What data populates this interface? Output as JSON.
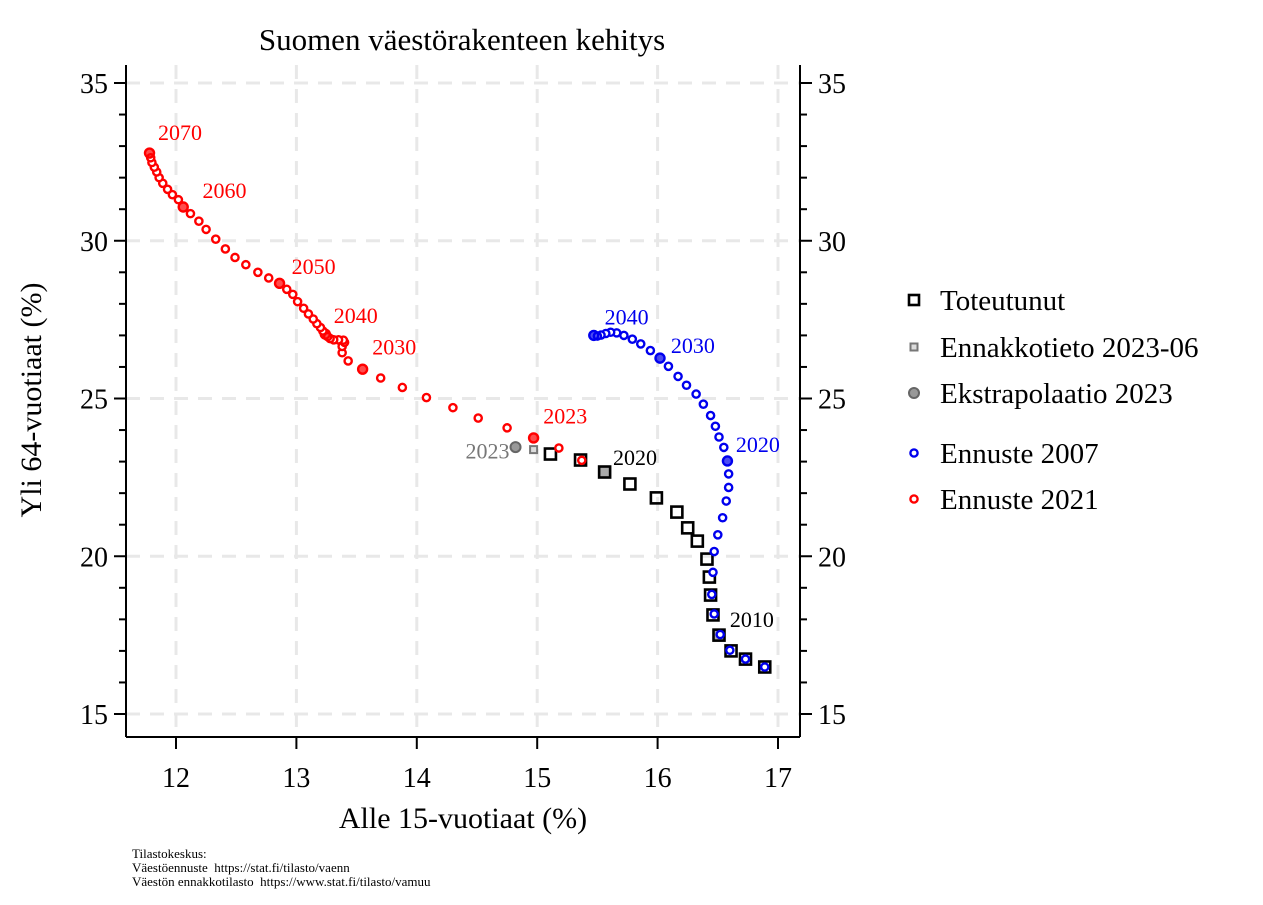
{
  "chart_data": {
    "type": "scatter",
    "title": "Suomen väestörakenteen kehitys",
    "xlabel": "Alle 15-vuotiaat (%)",
    "ylabel": "Yli 64-vuotiaat (%)",
    "xlim": [
      11.6,
      17.2
    ],
    "ylim": [
      14.4,
      36.0
    ],
    "x_ticks": [
      12,
      13,
      14,
      15,
      16,
      17
    ],
    "y_ticks": [
      15,
      20,
      25,
      30,
      35
    ],
    "x_tick_labels": [
      "12",
      "13",
      "14",
      "15",
      "16",
      "17"
    ],
    "y_tick_labels": [
      "15",
      "20",
      "25",
      "30",
      "35"
    ],
    "y_tick_labels_right": [
      "15",
      "20",
      "25",
      "30",
      "35"
    ],
    "grid": true,
    "legend_position": "right",
    "legend": [
      {
        "label": "Toteutunut",
        "marker": "square",
        "color": "#000000"
      },
      {
        "label": "Ennakkotieto 2023-06",
        "marker": "small-square",
        "color": "#777777"
      },
      {
        "label": "Ekstrapolaatio 2023",
        "marker": "filled-circle",
        "color": "#777777"
      },
      {
        "label": "Ennuste 2007",
        "marker": "circle",
        "color": "#0000ee"
      },
      {
        "label": "Ennuste 2021",
        "marker": "circle",
        "color": "#ff0000"
      }
    ],
    "series": [
      {
        "name": "Toteutunut",
        "color": "#000000",
        "points": [
          {
            "year": 2007,
            "x": 16.89,
            "y": 16.49
          },
          {
            "year": 2008,
            "x": 16.73,
            "y": 16.74
          },
          {
            "year": 2009,
            "x": 16.61,
            "y": 17.0
          },
          {
            "year": 2010,
            "x": 16.51,
            "y": 17.5
          },
          {
            "year": 2011,
            "x": 16.46,
            "y": 18.14
          },
          {
            "year": 2012,
            "x": 16.44,
            "y": 18.77
          },
          {
            "year": 2013,
            "x": 16.43,
            "y": 19.34
          },
          {
            "year": 2014,
            "x": 16.41,
            "y": 19.91
          },
          {
            "year": 2015,
            "x": 16.33,
            "y": 20.48
          },
          {
            "year": 2016,
            "x": 16.25,
            "y": 20.9
          },
          {
            "year": 2017,
            "x": 16.16,
            "y": 21.4
          },
          {
            "year": 2018,
            "x": 15.99,
            "y": 21.85
          },
          {
            "year": 2019,
            "x": 15.77,
            "y": 22.29
          },
          {
            "year": 2020,
            "x": 15.56,
            "y": 22.67
          },
          {
            "year": 2021,
            "x": 15.36,
            "y": 23.05
          },
          {
            "year": 2022,
            "x": 15.11,
            "y": 23.24
          }
        ],
        "highlight_years": [
          2010,
          2020
        ]
      },
      {
        "name": "Ennakkotieto 2023-06",
        "color": "#777777",
        "points": [
          {
            "year": 2023,
            "x": 14.97,
            "y": 23.38
          }
        ]
      },
      {
        "name": "Ekstrapolaatio 2023",
        "color": "#777777",
        "points": [
          {
            "year": 2023,
            "x": 14.82,
            "y": 23.46
          }
        ]
      },
      {
        "name": "Ennuste 2007",
        "color": "#0000ee",
        "points": [
          {
            "year": 2007,
            "x": 16.89,
            "y": 16.49
          },
          {
            "year": 2008,
            "x": 16.73,
            "y": 16.74
          },
          {
            "year": 2009,
            "x": 16.6,
            "y": 17.02
          },
          {
            "year": 2010,
            "x": 16.52,
            "y": 17.52
          },
          {
            "year": 2011,
            "x": 16.47,
            "y": 18.17
          },
          {
            "year": 2012,
            "x": 16.45,
            "y": 18.79
          },
          {
            "year": 2013,
            "x": 16.46,
            "y": 19.49
          },
          {
            "year": 2014,
            "x": 16.47,
            "y": 20.15
          },
          {
            "year": 2015,
            "x": 16.5,
            "y": 20.68
          },
          {
            "year": 2016,
            "x": 16.54,
            "y": 21.22
          },
          {
            "year": 2017,
            "x": 16.57,
            "y": 21.75
          },
          {
            "year": 2018,
            "x": 16.59,
            "y": 22.18
          },
          {
            "year": 2019,
            "x": 16.59,
            "y": 22.61
          },
          {
            "year": 2020,
            "x": 16.58,
            "y": 23.02
          },
          {
            "year": 2021,
            "x": 16.55,
            "y": 23.45
          },
          {
            "year": 2022,
            "x": 16.51,
            "y": 23.78
          },
          {
            "year": 2023,
            "x": 16.48,
            "y": 24.12
          },
          {
            "year": 2024,
            "x": 16.44,
            "y": 24.46
          },
          {
            "year": 2025,
            "x": 16.38,
            "y": 24.82
          },
          {
            "year": 2026,
            "x": 16.32,
            "y": 25.14
          },
          {
            "year": 2027,
            "x": 16.24,
            "y": 25.42
          },
          {
            "year": 2028,
            "x": 16.17,
            "y": 25.7
          },
          {
            "year": 2029,
            "x": 16.09,
            "y": 26.02
          },
          {
            "year": 2030,
            "x": 16.02,
            "y": 26.28
          },
          {
            "year": 2031,
            "x": 15.94,
            "y": 26.52
          },
          {
            "year": 2032,
            "x": 15.86,
            "y": 26.73
          },
          {
            "year": 2033,
            "x": 15.79,
            "y": 26.88
          },
          {
            "year": 2034,
            "x": 15.72,
            "y": 27.0
          },
          {
            "year": 2035,
            "x": 15.66,
            "y": 27.08
          },
          {
            "year": 2036,
            "x": 15.61,
            "y": 27.1
          },
          {
            "year": 2037,
            "x": 15.57,
            "y": 27.06
          },
          {
            "year": 2038,
            "x": 15.53,
            "y": 27.01
          },
          {
            "year": 2039,
            "x": 15.5,
            "y": 26.98
          },
          {
            "year": 2040,
            "x": 15.47,
            "y": 27.0
          }
        ],
        "highlight_years": [
          2020,
          2030,
          2040
        ]
      },
      {
        "name": "Ennuste 2021",
        "color": "#ff0000",
        "points": [
          {
            "year": 2021,
            "x": 15.37,
            "y": 23.04
          },
          {
            "year": 2022,
            "x": 15.18,
            "y": 23.43
          },
          {
            "year": 2023,
            "x": 14.97,
            "y": 23.75
          },
          {
            "year": 2024,
            "x": 14.75,
            "y": 24.07
          },
          {
            "year": 2025,
            "x": 14.51,
            "y": 24.38
          },
          {
            "year": 2026,
            "x": 14.3,
            "y": 24.71
          },
          {
            "year": 2027,
            "x": 14.08,
            "y": 25.03
          },
          {
            "year": 2028,
            "x": 13.88,
            "y": 25.35
          },
          {
            "year": 2029,
            "x": 13.7,
            "y": 25.65
          },
          {
            "year": 2030,
            "x": 13.55,
            "y": 25.93
          },
          {
            "year": 2031,
            "x": 13.43,
            "y": 26.19
          },
          {
            "year": 2032,
            "x": 13.38,
            "y": 26.45
          },
          {
            "year": 2033,
            "x": 13.38,
            "y": 26.65
          },
          {
            "year": 2034,
            "x": 13.4,
            "y": 26.78
          },
          {
            "year": 2035,
            "x": 13.39,
            "y": 26.85
          },
          {
            "year": 2036,
            "x": 13.35,
            "y": 26.86
          },
          {
            "year": 2037,
            "x": 13.31,
            "y": 26.86
          },
          {
            "year": 2038,
            "x": 13.28,
            "y": 26.9
          },
          {
            "year": 2039,
            "x": 13.26,
            "y": 26.96
          },
          {
            "year": 2040,
            "x": 13.24,
            "y": 27.04
          },
          {
            "year": 2041,
            "x": 13.22,
            "y": 27.14
          },
          {
            "year": 2042,
            "x": 13.2,
            "y": 27.25
          },
          {
            "year": 2043,
            "x": 13.17,
            "y": 27.37
          },
          {
            "year": 2044,
            "x": 13.14,
            "y": 27.52
          },
          {
            "year": 2045,
            "x": 13.1,
            "y": 27.68
          },
          {
            "year": 2046,
            "x": 13.06,
            "y": 27.86
          },
          {
            "year": 2047,
            "x": 13.01,
            "y": 28.07
          },
          {
            "year": 2048,
            "x": 12.97,
            "y": 28.3
          },
          {
            "year": 2049,
            "x": 12.92,
            "y": 28.46
          },
          {
            "year": 2050,
            "x": 12.86,
            "y": 28.65
          },
          {
            "year": 2051,
            "x": 12.77,
            "y": 28.82
          },
          {
            "year": 2052,
            "x": 12.68,
            "y": 29.0
          },
          {
            "year": 2053,
            "x": 12.58,
            "y": 29.24
          },
          {
            "year": 2054,
            "x": 12.49,
            "y": 29.47
          },
          {
            "year": 2055,
            "x": 12.41,
            "y": 29.74
          },
          {
            "year": 2056,
            "x": 12.33,
            "y": 30.05
          },
          {
            "year": 2057,
            "x": 12.25,
            "y": 30.36
          },
          {
            "year": 2058,
            "x": 12.19,
            "y": 30.62
          },
          {
            "year": 2059,
            "x": 12.12,
            "y": 30.86
          },
          {
            "year": 2060,
            "x": 12.06,
            "y": 31.07
          },
          {
            "year": 2061,
            "x": 12.02,
            "y": 31.3
          },
          {
            "year": 2062,
            "x": 11.97,
            "y": 31.46
          },
          {
            "year": 2063,
            "x": 11.93,
            "y": 31.63
          },
          {
            "year": 2064,
            "x": 11.89,
            "y": 31.82
          },
          {
            "year": 2065,
            "x": 11.86,
            "y": 32.0
          },
          {
            "year": 2066,
            "x": 11.84,
            "y": 32.18
          },
          {
            "year": 2067,
            "x": 11.82,
            "y": 32.33
          },
          {
            "year": 2068,
            "x": 11.8,
            "y": 32.48
          },
          {
            "year": 2069,
            "x": 11.79,
            "y": 32.63
          },
          {
            "year": 2070,
            "x": 11.78,
            "y": 32.78
          }
        ],
        "highlight_years": [
          2023,
          2030,
          2040,
          2050,
          2060,
          2070
        ]
      }
    ],
    "annotations": [
      {
        "text": "2070",
        "x": 11.85,
        "y": 33.2,
        "color": "#ff0000"
      },
      {
        "text": "2060",
        "x": 12.22,
        "y": 31.35,
        "color": "#ff0000"
      },
      {
        "text": "2050",
        "x": 12.96,
        "y": 28.95,
        "color": "#ff0000"
      },
      {
        "text": "2040",
        "x": 13.31,
        "y": 27.4,
        "color": "#ff0000"
      },
      {
        "text": "2030",
        "x": 13.63,
        "y": 26.4,
        "color": "#ff0000"
      },
      {
        "text": "2023",
        "x": 15.05,
        "y": 24.2,
        "color": "#ff0000"
      },
      {
        "text": "2023",
        "x": 14.77,
        "y": 23.1,
        "color": "#777777",
        "anchor": "end"
      },
      {
        "text": "2020",
        "x": 15.63,
        "y": 22.9,
        "color": "#000000"
      },
      {
        "text": "2010",
        "x": 16.6,
        "y": 17.75,
        "color": "#000000"
      },
      {
        "text": "2040",
        "x": 15.56,
        "y": 27.35,
        "color": "#0000ee"
      },
      {
        "text": "2030",
        "x": 16.11,
        "y": 26.45,
        "color": "#0000ee"
      },
      {
        "text": "2020",
        "x": 16.65,
        "y": 23.3,
        "color": "#0000ee"
      }
    ]
  },
  "footer": {
    "source_title": "Tilastokeskus:",
    "line1": "Väestöennuste  https://stat.fi/tilasto/vaenn",
    "line2": "Väestön ennakkotilasto  https://www.stat.fi/tilasto/vamuu"
  }
}
